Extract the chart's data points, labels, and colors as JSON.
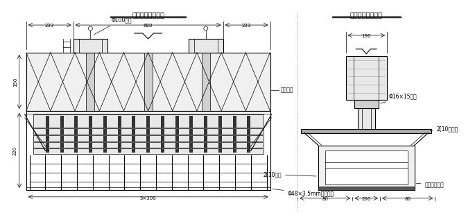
{
  "bg_color": "#ffffff",
  "line_color": "#000000",
  "gray_color": "#888888",
  "light_gray": "#cccccc",
  "title_front": "钢棒现浇盖梁正面",
  "title_side": "钢棒现浇盖梁侧面",
  "label_5x300": "5×300",
  "label_pipe": "Φ48×3.5mm钢管护栏",
  "label_beilu": "贝雷支架",
  "label_steel_bar": "Φ100钢棒",
  "label_220": "220",
  "label_150": "150",
  "label_233a": "233",
  "label_680": "680",
  "label_233b": "233",
  "label_80a": "80",
  "label_200": "200",
  "label_80b": "80",
  "label_2_10_back": "2[10背筋",
  "label_hualan": "花篮螺丝拉杆",
  "label_2_10_cross": "2[10小横梁",
  "label_phi16": "Φ16×15砂筒",
  "label_190": "190"
}
